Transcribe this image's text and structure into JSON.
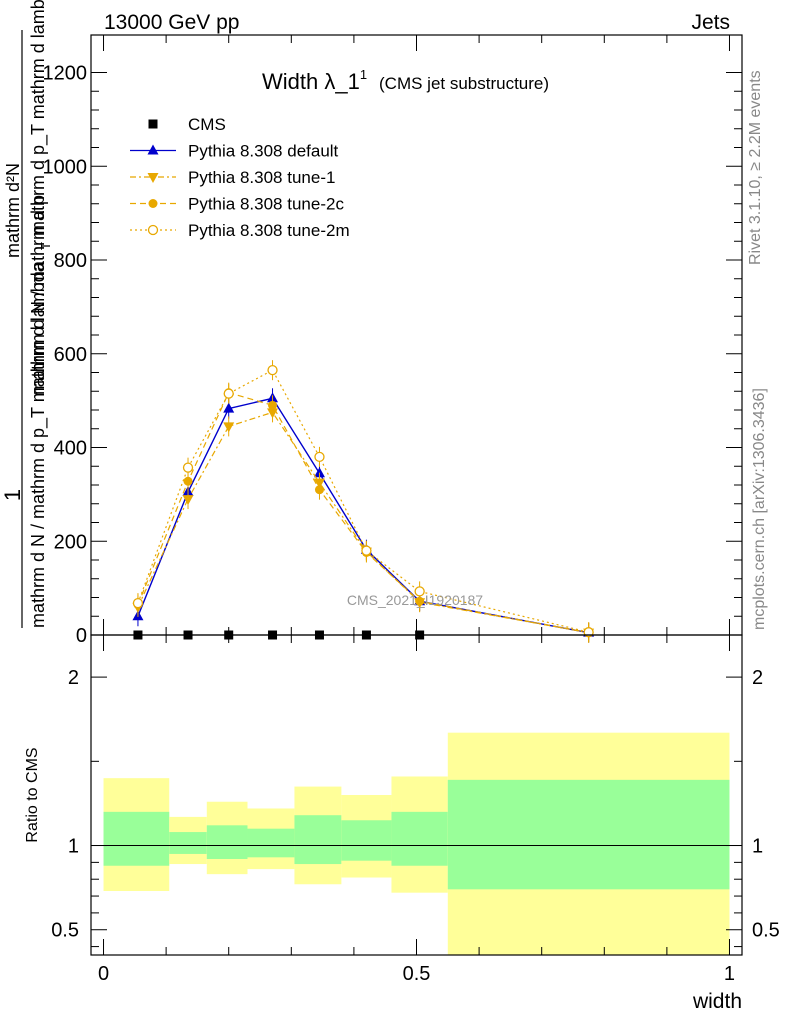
{
  "header": {
    "left": "13000 GeV pp",
    "right": "Jets"
  },
  "side_labels": {
    "rivet": "Rivet 3.1.10, ≥ 2.2M events",
    "mcplots": "mcplots.cern.ch [arXiv:1306.3436]"
  },
  "watermark": "CMS_2021_I1920187",
  "chart_data": [
    {
      "type": "line",
      "title": "Width λ_1",
      "title_sup": "1",
      "subtitle": "(CMS jet substructure)",
      "ylabel_fraction_top": "1",
      "ylabel_fraction_bottom": "mathrm d N / mathrm d p_T mathrm d lambda",
      "ylabel_numerator": "mathrm d²N",
      "ylabel_denominator": "mathrm d p_T mathrm d lambda",
      "ylabel_prefix": "mathrm d N / mathrm d p",
      "ylabel_sub": "T",
      "ylim": [
        0,
        1280
      ],
      "xlim": [
        -0.02,
        1.02
      ],
      "y_ticks": [
        0,
        200,
        400,
        600,
        800,
        1000,
        1200
      ],
      "y_tick_labels": [
        "0",
        "200",
        "400",
        "600",
        "800",
        "1000",
        "1200"
      ],
      "legend_position": "top-left",
      "series": [
        {
          "name": "CMS",
          "color": "#000000",
          "marker": "square",
          "x": [
            0.055,
            0.135,
            0.2,
            0.27,
            0.345,
            0.42,
            0.505
          ],
          "y": [
            0,
            0,
            0,
            0,
            0,
            0,
            0
          ]
        },
        {
          "name": "Pythia 8.308 default",
          "color": "#0000cc",
          "marker": "triangle-up",
          "line": "solid",
          "x": [
            0.055,
            0.135,
            0.2,
            0.27,
            0.345,
            0.42,
            0.505,
            0.775
          ],
          "y": [
            40,
            305,
            483,
            505,
            345,
            182,
            72,
            5
          ]
        },
        {
          "name": "Pythia 8.308 tune-1",
          "color": "#e8a800",
          "marker": "triangle-down",
          "line": "dashdot",
          "x": [
            0.055,
            0.135,
            0.2,
            0.27,
            0.345,
            0.42,
            0.505,
            0.775
          ],
          "y": [
            60,
            290,
            445,
            475,
            325,
            178,
            70,
            5
          ]
        },
        {
          "name": "Pythia 8.308 tune-2c",
          "color": "#e8a800",
          "marker": "circle-filled",
          "line": "dashed",
          "x": [
            0.055,
            0.135,
            0.2,
            0.27,
            0.345,
            0.42,
            0.505,
            0.775
          ],
          "y": [
            65,
            328,
            517,
            490,
            310,
            176,
            72,
            5
          ]
        },
        {
          "name": "Pythia 8.308 tune-2m",
          "color": "#e8a800",
          "marker": "circle-open",
          "line": "dotted",
          "x": [
            0.055,
            0.135,
            0.2,
            0.27,
            0.345,
            0.42,
            0.505,
            0.775
          ],
          "y": [
            68,
            357,
            515,
            565,
            380,
            180,
            93,
            6
          ]
        }
      ]
    },
    {
      "type": "area",
      "ylabel": "Ratio to CMS",
      "xlabel": "width",
      "ylim": [
        0.35,
        2.25
      ],
      "xlim": [
        -0.02,
        1.02
      ],
      "y_ticks": [
        0.5,
        1,
        2
      ],
      "y_tick_labels": [
        "0.5",
        "1",
        "2"
      ],
      "x_ticks": [
        0,
        0.5,
        1
      ],
      "x_tick_labels": [
        "0",
        "0.5",
        "1"
      ],
      "reference_line": 1,
      "bins": [
        {
          "x0": 0.0,
          "x1": 0.105,
          "inner": [
            0.88,
            1.2
          ],
          "outer": [
            0.73,
            1.4
          ]
        },
        {
          "x0": 0.105,
          "x1": 0.165,
          "inner": [
            0.95,
            1.08
          ],
          "outer": [
            0.89,
            1.17
          ]
        },
        {
          "x0": 0.165,
          "x1": 0.23,
          "inner": [
            0.92,
            1.12
          ],
          "outer": [
            0.83,
            1.26
          ]
        },
        {
          "x0": 0.23,
          "x1": 0.305,
          "inner": [
            0.93,
            1.1
          ],
          "outer": [
            0.86,
            1.22
          ]
        },
        {
          "x0": 0.305,
          "x1": 0.38,
          "inner": [
            0.89,
            1.18
          ],
          "outer": [
            0.77,
            1.35
          ]
        },
        {
          "x0": 0.38,
          "x1": 0.46,
          "inner": [
            0.91,
            1.15
          ],
          "outer": [
            0.81,
            1.3
          ]
        },
        {
          "x0": 0.46,
          "x1": 0.55,
          "inner": [
            0.88,
            1.2
          ],
          "outer": [
            0.72,
            1.41
          ]
        },
        {
          "x0": 0.55,
          "x1": 1.0,
          "inner": [
            0.74,
            1.39
          ],
          "outer": [
            0.35,
            1.67
          ]
        }
      ]
    }
  ]
}
